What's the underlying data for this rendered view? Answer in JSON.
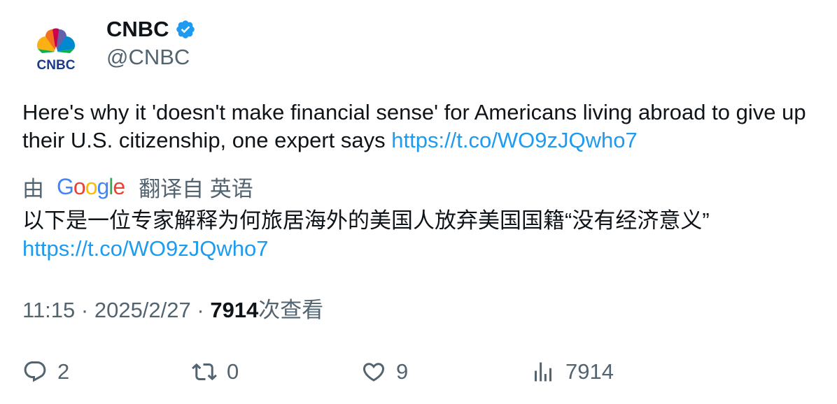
{
  "author": {
    "display_name": "CNBC",
    "handle": "@CNBC",
    "logo_text": "CNBC",
    "verified": true
  },
  "tweet": {
    "text": "Here's why it 'doesn't make financial sense' for Americans living abroad to give up their U.S. citizenship, one expert says ",
    "link": "https://t.co/WO9zJQwho7"
  },
  "translation": {
    "by_label": "由",
    "provider": "Google",
    "from_label": "翻译自 英语",
    "text": "以下是一位专家解释为何旅居海外的美国人放弃美国国籍“没有经济意义”",
    "link": "https://t.co/WO9zJQwho7"
  },
  "meta": {
    "time": "11:15",
    "separator": " · ",
    "date": "2025/2/27",
    "views": "7914",
    "views_label": "次查看"
  },
  "actions": {
    "replies": "2",
    "retweets": "0",
    "likes": "9",
    "views": "7914"
  },
  "icons": {
    "reply": "reply-icon",
    "retweet": "retweet-icon",
    "like": "heart-icon",
    "views": "analytics-icon",
    "verified": "verified-badge-icon"
  },
  "colors": {
    "link": "#1d9bf0",
    "secondary_text": "#536471",
    "primary_text": "#0f1419",
    "verified": "#1d9bf0"
  }
}
